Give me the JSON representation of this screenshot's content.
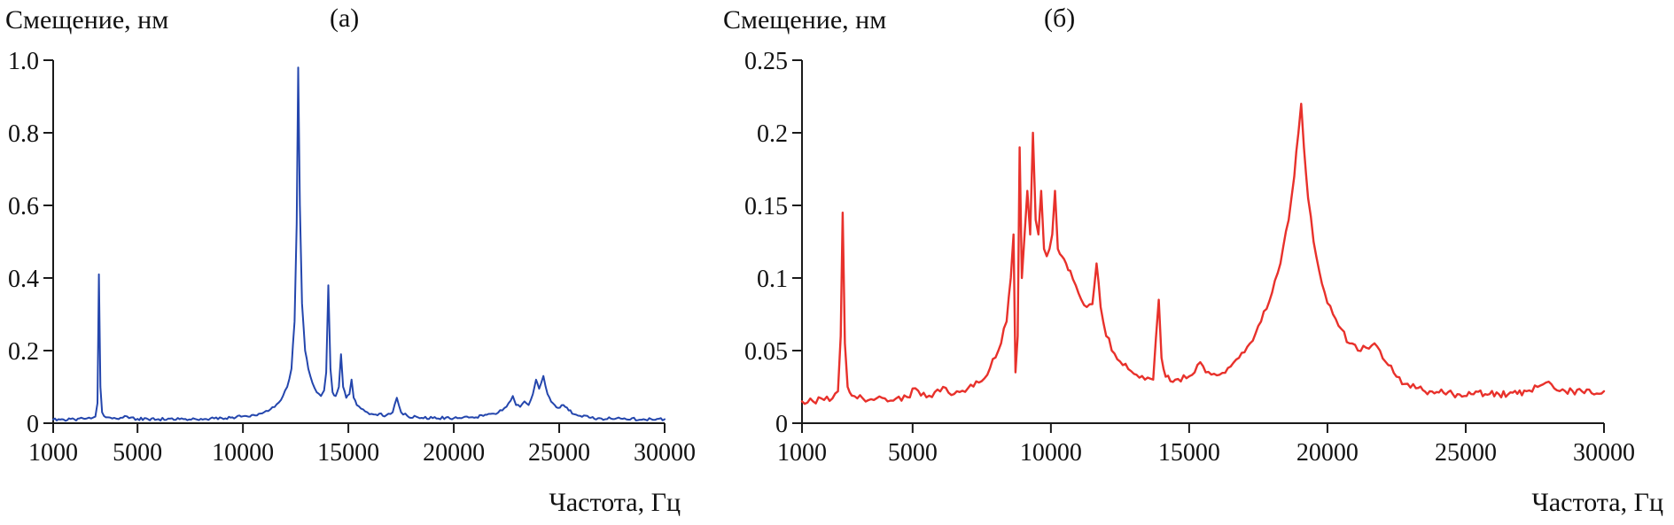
{
  "figure": {
    "background": "#ffffff"
  },
  "chart_data": [
    {
      "type": "line",
      "panel_label": "(а)",
      "ylabel": "Смещение, нм",
      "xlabel": "Частота, Гц",
      "line_color": "#2446ad",
      "axis_color": "#1a1a1a",
      "grid": false,
      "legend": false,
      "xlim": [
        1000,
        30000
      ],
      "ylim": [
        0,
        1.0
      ],
      "xticks": [
        1000,
        5000,
        10000,
        15000,
        20000,
        25000,
        30000
      ],
      "xtick_labels": [
        "1000",
        "5000",
        "10000",
        "15000",
        "20000",
        "25000",
        "30000"
      ],
      "yticks": [
        0,
        0.2,
        0.4,
        0.6,
        0.8,
        1.0
      ],
      "ytick_labels": [
        "0",
        "0.2",
        "0.4",
        "0.6",
        "0.8",
        "1.0"
      ],
      "noise": 0.004,
      "points": [
        [
          1000,
          0.01
        ],
        [
          1500,
          0.01
        ],
        [
          2000,
          0.011
        ],
        [
          2500,
          0.012
        ],
        [
          2800,
          0.013
        ],
        [
          3000,
          0.018
        ],
        [
          3100,
          0.055
        ],
        [
          3170,
          0.41
        ],
        [
          3240,
          0.1
        ],
        [
          3320,
          0.03
        ],
        [
          3500,
          0.016
        ],
        [
          3800,
          0.013
        ],
        [
          4200,
          0.015
        ],
        [
          4400,
          0.02
        ],
        [
          4600,
          0.014
        ],
        [
          5000,
          0.012
        ],
        [
          5500,
          0.011
        ],
        [
          6000,
          0.011
        ],
        [
          7000,
          0.011
        ],
        [
          8000,
          0.012
        ],
        [
          9000,
          0.014
        ],
        [
          9500,
          0.016
        ],
        [
          10000,
          0.019
        ],
        [
          10500,
          0.023
        ],
        [
          11000,
          0.03
        ],
        [
          11300,
          0.038
        ],
        [
          11600,
          0.052
        ],
        [
          11900,
          0.075
        ],
        [
          12100,
          0.1
        ],
        [
          12300,
          0.15
        ],
        [
          12450,
          0.28
        ],
        [
          12550,
          0.55
        ],
        [
          12620,
          0.98
        ],
        [
          12700,
          0.6
        ],
        [
          12800,
          0.33
        ],
        [
          12950,
          0.2
        ],
        [
          13100,
          0.15
        ],
        [
          13300,
          0.11
        ],
        [
          13500,
          0.085
        ],
        [
          13700,
          0.075
        ],
        [
          13850,
          0.09
        ],
        [
          13950,
          0.14
        ],
        [
          14050,
          0.38
        ],
        [
          14150,
          0.15
        ],
        [
          14250,
          0.085
        ],
        [
          14400,
          0.075
        ],
        [
          14550,
          0.1
        ],
        [
          14650,
          0.19
        ],
        [
          14750,
          0.1
        ],
        [
          14900,
          0.07
        ],
        [
          15050,
          0.08
        ],
        [
          15150,
          0.12
        ],
        [
          15250,
          0.07
        ],
        [
          15400,
          0.05
        ],
        [
          15600,
          0.04
        ],
        [
          15900,
          0.03
        ],
        [
          16300,
          0.024
        ],
        [
          16800,
          0.022
        ],
        [
          17100,
          0.03
        ],
        [
          17300,
          0.07
        ],
        [
          17500,
          0.03
        ],
        [
          17800,
          0.02
        ],
        [
          18300,
          0.016
        ],
        [
          19000,
          0.014
        ],
        [
          20000,
          0.014
        ],
        [
          20800,
          0.016
        ],
        [
          21400,
          0.02
        ],
        [
          21900,
          0.026
        ],
        [
          22300,
          0.035
        ],
        [
          22600,
          0.055
        ],
        [
          22800,
          0.075
        ],
        [
          22950,
          0.05
        ],
        [
          23150,
          0.045
        ],
        [
          23350,
          0.06
        ],
        [
          23550,
          0.05
        ],
        [
          23750,
          0.08
        ],
        [
          23900,
          0.12
        ],
        [
          24050,
          0.095
        ],
        [
          24250,
          0.13
        ],
        [
          24450,
          0.08
        ],
        [
          24700,
          0.055
        ],
        [
          24950,
          0.042
        ],
        [
          25200,
          0.05
        ],
        [
          25450,
          0.035
        ],
        [
          25700,
          0.025
        ],
        [
          26000,
          0.02
        ],
        [
          26500,
          0.015
        ],
        [
          27000,
          0.013
        ],
        [
          28000,
          0.012
        ],
        [
          29000,
          0.011
        ],
        [
          30000,
          0.011
        ]
      ]
    },
    {
      "type": "line",
      "panel_label": "(б)",
      "ylabel": "Смещение, нм",
      "xlabel": "Частота, Гц",
      "line_color": "#e8312b",
      "axis_color": "#1a1a1a",
      "grid": false,
      "legend": false,
      "xlim": [
        1000,
        30000
      ],
      "ylim": [
        0,
        0.25
      ],
      "xticks": [
        1000,
        5000,
        10000,
        15000,
        20000,
        25000,
        30000
      ],
      "xtick_labels": [
        "1000",
        "5000",
        "10000",
        "15000",
        "20000",
        "25000",
        "30000"
      ],
      "yticks": [
        0,
        0.05,
        0.1,
        0.15,
        0.2,
        0.25
      ],
      "ytick_labels": [
        "0",
        "0.05",
        "0.1",
        "0.15",
        "0.2",
        "0.25"
      ],
      "noise": 0.0025,
      "points": [
        [
          1000,
          0.015
        ],
        [
          1400,
          0.015
        ],
        [
          1800,
          0.016
        ],
        [
          2100,
          0.017
        ],
        [
          2300,
          0.022
        ],
        [
          2400,
          0.06
        ],
        [
          2470,
          0.145
        ],
        [
          2550,
          0.055
        ],
        [
          2650,
          0.025
        ],
        [
          2800,
          0.019
        ],
        [
          3200,
          0.017
        ],
        [
          3600,
          0.016
        ],
        [
          4000,
          0.017
        ],
        [
          4400,
          0.017
        ],
        [
          4800,
          0.018
        ],
        [
          5100,
          0.024
        ],
        [
          5300,
          0.019
        ],
        [
          5700,
          0.018
        ],
        [
          6100,
          0.025
        ],
        [
          6300,
          0.021
        ],
        [
          6600,
          0.022
        ],
        [
          7000,
          0.024
        ],
        [
          7400,
          0.028
        ],
        [
          7800,
          0.038
        ],
        [
          8100,
          0.05
        ],
        [
          8400,
          0.07
        ],
        [
          8550,
          0.1
        ],
        [
          8650,
          0.13
        ],
        [
          8720,
          0.035
        ],
        [
          8800,
          0.06
        ],
        [
          8870,
          0.19
        ],
        [
          8950,
          0.1
        ],
        [
          9050,
          0.13
        ],
        [
          9150,
          0.16
        ],
        [
          9250,
          0.13
        ],
        [
          9350,
          0.2
        ],
        [
          9450,
          0.14
        ],
        [
          9550,
          0.13
        ],
        [
          9650,
          0.16
        ],
        [
          9750,
          0.12
        ],
        [
          9850,
          0.115
        ],
        [
          9950,
          0.12
        ],
        [
          10050,
          0.13
        ],
        [
          10150,
          0.16
        ],
        [
          10250,
          0.12
        ],
        [
          10400,
          0.115
        ],
        [
          10550,
          0.11
        ],
        [
          10700,
          0.105
        ],
        [
          10900,
          0.095
        ],
        [
          11100,
          0.085
        ],
        [
          11300,
          0.08
        ],
        [
          11500,
          0.082
        ],
        [
          11650,
          0.11
        ],
        [
          11800,
          0.08
        ],
        [
          12000,
          0.06
        ],
        [
          12300,
          0.048
        ],
        [
          12600,
          0.04
        ],
        [
          13000,
          0.034
        ],
        [
          13400,
          0.03
        ],
        [
          13700,
          0.03
        ],
        [
          13900,
          0.085
        ],
        [
          14000,
          0.045
        ],
        [
          14150,
          0.032
        ],
        [
          14500,
          0.03
        ],
        [
          14900,
          0.031
        ],
        [
          15200,
          0.035
        ],
        [
          15400,
          0.042
        ],
        [
          15600,
          0.035
        ],
        [
          16000,
          0.033
        ],
        [
          16400,
          0.038
        ],
        [
          16800,
          0.045
        ],
        [
          17200,
          0.055
        ],
        [
          17600,
          0.07
        ],
        [
          18000,
          0.09
        ],
        [
          18300,
          0.11
        ],
        [
          18600,
          0.14
        ],
        [
          18800,
          0.17
        ],
        [
          18950,
          0.2
        ],
        [
          19050,
          0.22
        ],
        [
          19150,
          0.19
        ],
        [
          19300,
          0.155
        ],
        [
          19500,
          0.125
        ],
        [
          19700,
          0.105
        ],
        [
          19900,
          0.09
        ],
        [
          20200,
          0.075
        ],
        [
          20500,
          0.065
        ],
        [
          20800,
          0.055
        ],
        [
          21100,
          0.05
        ],
        [
          21400,
          0.052
        ],
        [
          21700,
          0.055
        ],
        [
          21900,
          0.05
        ],
        [
          22200,
          0.04
        ],
        [
          22500,
          0.032
        ],
        [
          22800,
          0.027
        ],
        [
          23200,
          0.024
        ],
        [
          23700,
          0.022
        ],
        [
          24200,
          0.021
        ],
        [
          24700,
          0.02
        ],
        [
          25200,
          0.02
        ],
        [
          25700,
          0.02
        ],
        [
          26200,
          0.02
        ],
        [
          26700,
          0.021
        ],
        [
          27200,
          0.022
        ],
        [
          27600,
          0.025
        ],
        [
          27900,
          0.028
        ],
        [
          28200,
          0.024
        ],
        [
          28600,
          0.022
        ],
        [
          29200,
          0.022
        ],
        [
          30000,
          0.022
        ]
      ]
    }
  ]
}
